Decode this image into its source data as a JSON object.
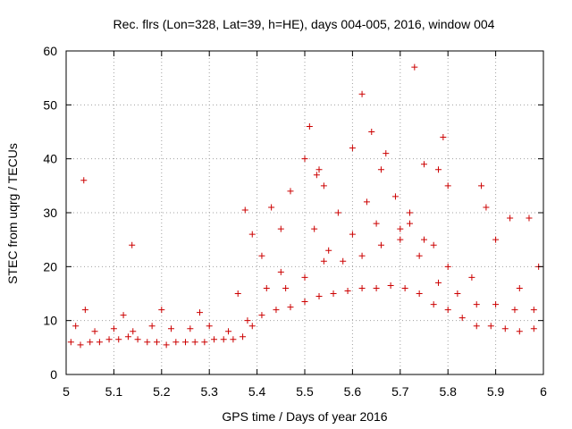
{
  "chart_data": {
    "type": "scatter",
    "title": "Rec. flrs (Lon=328, Lat=39, h=HE), days 004-005, 2016, window 004",
    "xlabel": "GPS time / Days of year 2016",
    "ylabel": "STEC from uqrg / TECUs",
    "xlim": [
      5,
      6
    ],
    "ylim": [
      0,
      60
    ],
    "xticks": [
      5,
      5.1,
      5.2,
      5.3,
      5.4,
      5.5,
      5.6,
      5.7,
      5.8,
      5.9,
      6
    ],
    "xtick_labels": [
      "5",
      "5.1",
      "5.2",
      "5.3",
      "5.4",
      "5.5",
      "5.6",
      "5.7",
      "5.8",
      "5.9",
      "6"
    ],
    "yticks": [
      0,
      10,
      20,
      30,
      40,
      50,
      60
    ],
    "ytick_labels": [
      "0",
      "10",
      "20",
      "30",
      "40",
      "50",
      "60"
    ],
    "grid": true,
    "marker": "plus",
    "series": [
      {
        "name": "STEC",
        "color": "#cc0000",
        "x": [
          5.037,
          5.138,
          5.375,
          5.39,
          5.41,
          5.43,
          5.45,
          5.47,
          5.5,
          5.51,
          5.525,
          5.53,
          5.54,
          5.6,
          5.62,
          5.64,
          5.66,
          5.67,
          5.72,
          5.73,
          5.75,
          5.78,
          5.79,
          5.8,
          5.87,
          5.88,
          5.9,
          5.93,
          5.97,
          5.99,
          5.01,
          5.03,
          5.05,
          5.07,
          5.09,
          5.11,
          5.13,
          5.15,
          5.17,
          5.19,
          5.21,
          5.23,
          5.25,
          5.27,
          5.29,
          5.31,
          5.33,
          5.35,
          5.37,
          5.39,
          5.02,
          5.06,
          5.1,
          5.14,
          5.18,
          5.22,
          5.26,
          5.3,
          5.34,
          5.38,
          5.04,
          5.12,
          5.2,
          5.28,
          5.36,
          5.41,
          5.44,
          5.47,
          5.5,
          5.53,
          5.56,
          5.59,
          5.62,
          5.65,
          5.68,
          5.71,
          5.74,
          5.77,
          5.8,
          5.83,
          5.86,
          5.89,
          5.92,
          5.95,
          5.98,
          5.42,
          5.46,
          5.5,
          5.54,
          5.58,
          5.62,
          5.66,
          5.7,
          5.74,
          5.78,
          5.82,
          5.86,
          5.9,
          5.94,
          5.98,
          5.45,
          5.55,
          5.6,
          5.65,
          5.7,
          5.75,
          5.8,
          5.85,
          5.95,
          5.52,
          5.57,
          5.63,
          5.69,
          5.72,
          5.77
        ],
        "y": [
          36,
          24,
          30.5,
          26,
          22,
          31,
          27,
          34,
          40,
          46,
          37,
          38,
          35,
          42,
          52,
          45,
          38,
          41,
          30,
          57,
          39,
          38,
          44,
          35,
          35,
          31,
          25,
          29,
          29,
          20,
          6,
          5.5,
          6,
          6,
          6.5,
          6.5,
          7,
          6.5,
          6,
          6,
          5.5,
          6,
          6,
          6,
          6,
          6.5,
          6.5,
          6.5,
          7,
          9,
          9,
          8,
          8.5,
          8,
          9,
          8.5,
          8.5,
          9,
          8,
          10,
          12,
          11,
          12,
          11.5,
          15,
          11,
          12,
          12.5,
          13.5,
          14.5,
          15,
          15.5,
          16,
          16,
          16.5,
          16,
          15,
          13,
          12,
          10.5,
          9,
          9,
          8.5,
          8,
          8.5,
          16,
          16,
          18,
          21,
          21,
          22,
          24,
          25,
          22,
          17,
          15,
          13,
          13,
          12,
          12,
          19,
          23,
          26,
          28,
          27,
          25,
          20,
          18,
          16,
          27,
          30,
          32,
          33,
          28,
          24
        ]
      }
    ]
  }
}
